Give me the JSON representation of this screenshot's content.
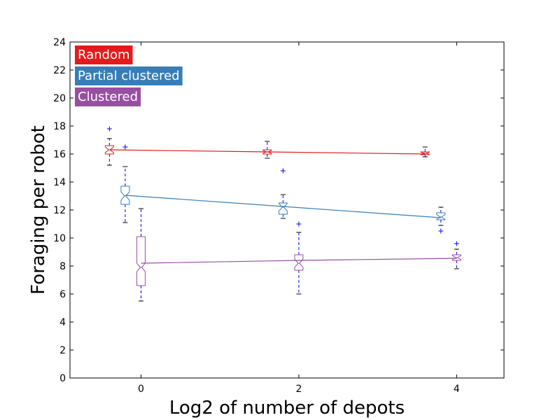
{
  "chart_data": {
    "type": "box",
    "xlabel": "Log2 of number of depots",
    "ylabel": "Foraging per robot",
    "xlim": [
      -0.9,
      4.6
    ],
    "ylim": [
      0,
      24
    ],
    "xticks": [
      0,
      2,
      4
    ],
    "xtick_labels": [
      "0",
      "2",
      "4"
    ],
    "yticks": [
      0,
      2,
      4,
      6,
      8,
      10,
      12,
      14,
      16,
      18,
      20,
      22,
      24
    ],
    "ytick_labels": [
      "0",
      "2",
      "4",
      "6",
      "8",
      "10",
      "12",
      "14",
      "16",
      "18",
      "20",
      "22",
      "24"
    ],
    "grid": false,
    "legend": {
      "placement": "top-left",
      "entries": [
        {
          "label": "Random",
          "color": "#e41a1c"
        },
        {
          "label": "Partial clustered",
          "color": "#377eb8"
        },
        {
          "label": "Clustered",
          "color": "#984ea3"
        }
      ]
    },
    "series": [
      {
        "name": "Random",
        "color": "#e41a1c",
        "boxes": [
          {
            "x": -0.4,
            "whislo": 15.2,
            "q1": 16.0,
            "median": 16.3,
            "q3": 16.6,
            "whishi": 17.1,
            "fliers": [
              17.8
            ]
          },
          {
            "x": 1.6,
            "whislo": 15.7,
            "q1": 16.0,
            "median": 16.15,
            "q3": 16.3,
            "whishi": 16.9,
            "fliers": []
          },
          {
            "x": 3.6,
            "whislo": 15.8,
            "q1": 15.95,
            "median": 16.05,
            "q3": 16.15,
            "whishi": 16.5,
            "fliers": []
          }
        ],
        "trend": [
          [
            -0.4,
            16.3
          ],
          [
            1.6,
            16.15
          ],
          [
            3.6,
            16.0
          ]
        ]
      },
      {
        "name": "Partial clustered",
        "color": "#377eb8",
        "boxes": [
          {
            "x": -0.2,
            "whislo": 11.1,
            "q1": 12.4,
            "median": 13.0,
            "q3": 13.7,
            "whishi": 15.1,
            "fliers": [
              16.5
            ]
          },
          {
            "x": 1.8,
            "whislo": 11.4,
            "q1": 11.7,
            "median": 12.2,
            "q3": 12.5,
            "whishi": 13.1,
            "fliers": [
              14.8
            ]
          },
          {
            "x": 3.8,
            "whislo": 10.9,
            "q1": 11.3,
            "median": 11.5,
            "q3": 11.8,
            "whishi": 12.2,
            "fliers": [
              10.5
            ]
          }
        ],
        "trend": [
          [
            -0.2,
            13.05
          ],
          [
            1.8,
            12.25
          ],
          [
            3.8,
            11.45
          ]
        ]
      },
      {
        "name": "Clustered",
        "color": "#984ea3",
        "boxes": [
          {
            "x": 0.0,
            "whislo": 5.5,
            "q1": 6.6,
            "median": 7.9,
            "q3": 10.1,
            "whishi": 12.1,
            "fliers": []
          },
          {
            "x": 2.0,
            "whislo": 6.0,
            "q1": 7.7,
            "median": 8.2,
            "q3": 8.8,
            "whishi": 10.4,
            "fliers": [
              11.0
            ]
          },
          {
            "x": 4.0,
            "whislo": 7.8,
            "q1": 8.4,
            "median": 8.6,
            "q3": 8.8,
            "whishi": 9.2,
            "fliers": [
              9.6
            ]
          }
        ],
        "trend": [
          [
            0.0,
            8.2
          ],
          [
            2.0,
            8.4
          ],
          [
            4.0,
            8.55
          ]
        ]
      }
    ],
    "whisker_color": "#0000ff",
    "flier_color": "#0000ff"
  }
}
